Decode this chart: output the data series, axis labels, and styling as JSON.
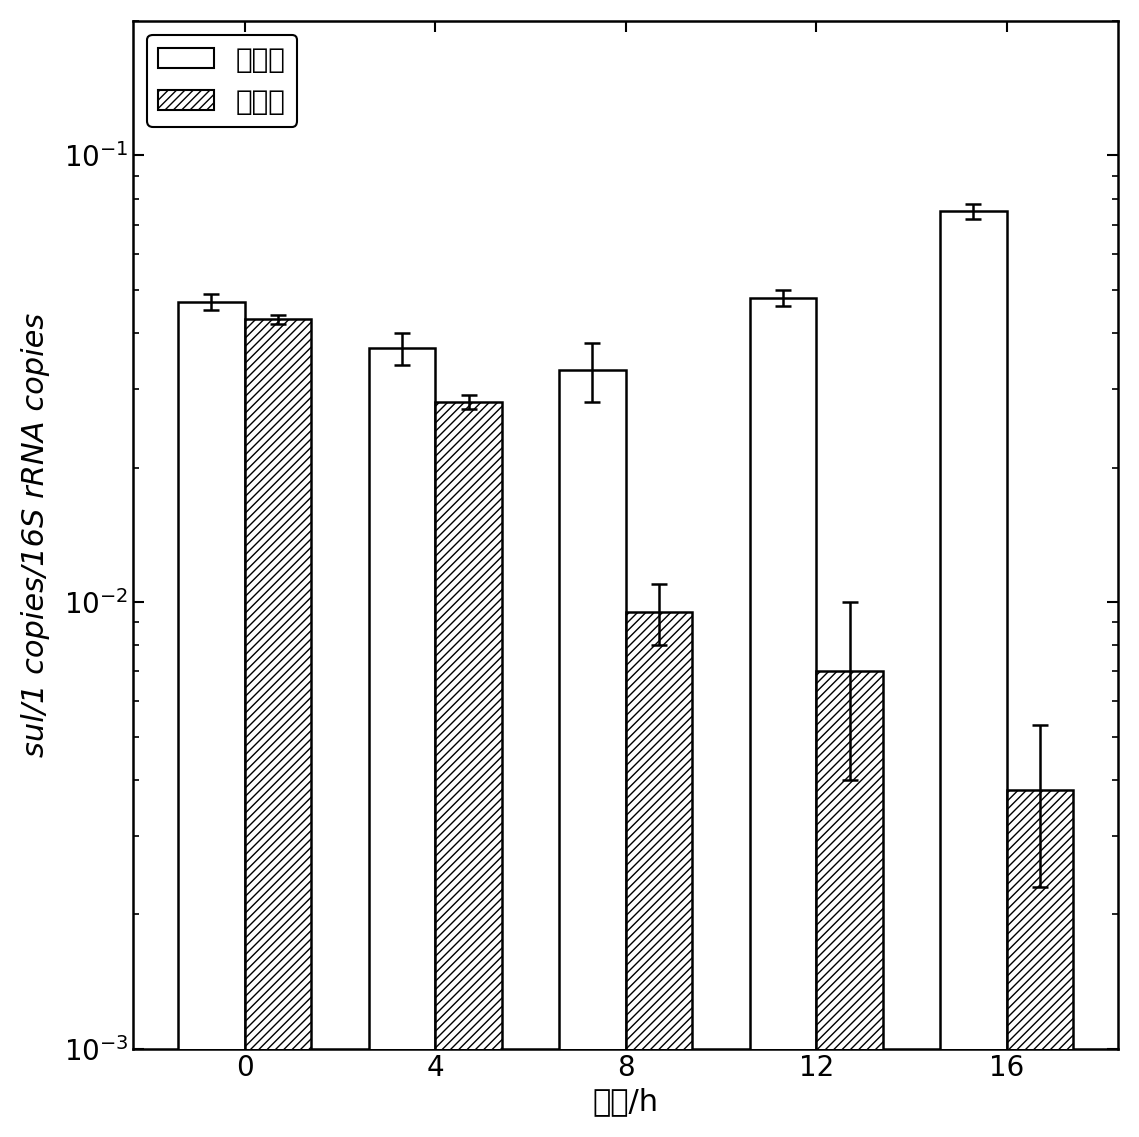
{
  "time_points": [
    0,
    4,
    8,
    12,
    16
  ],
  "control_values": [
    0.047,
    0.037,
    0.033,
    0.048,
    0.075
  ],
  "control_errors": [
    0.002,
    0.003,
    0.005,
    0.002,
    0.003
  ],
  "experiment_values": [
    0.043,
    0.028,
    0.0095,
    0.007,
    0.0038
  ],
  "experiment_errors": [
    0.001,
    0.001,
    0.0015,
    0.003,
    0.0015
  ],
  "ylim": [
    0.001,
    0.2
  ],
  "xlabel": "时间/h",
  "ylabel": "sul/1 copies/16S rRNA copies",
  "legend_control": "空白组",
  "legend_experiment": "实验组",
  "bar_width": 0.35,
  "control_color": "white",
  "experiment_color": "white",
  "control_edgecolor": "black",
  "experiment_edgecolor": "black",
  "hatch_pattern": "////",
  "tick_labelsize": 20,
  "label_fontsize": 22,
  "legend_fontsize": 20,
  "background_color": "white"
}
